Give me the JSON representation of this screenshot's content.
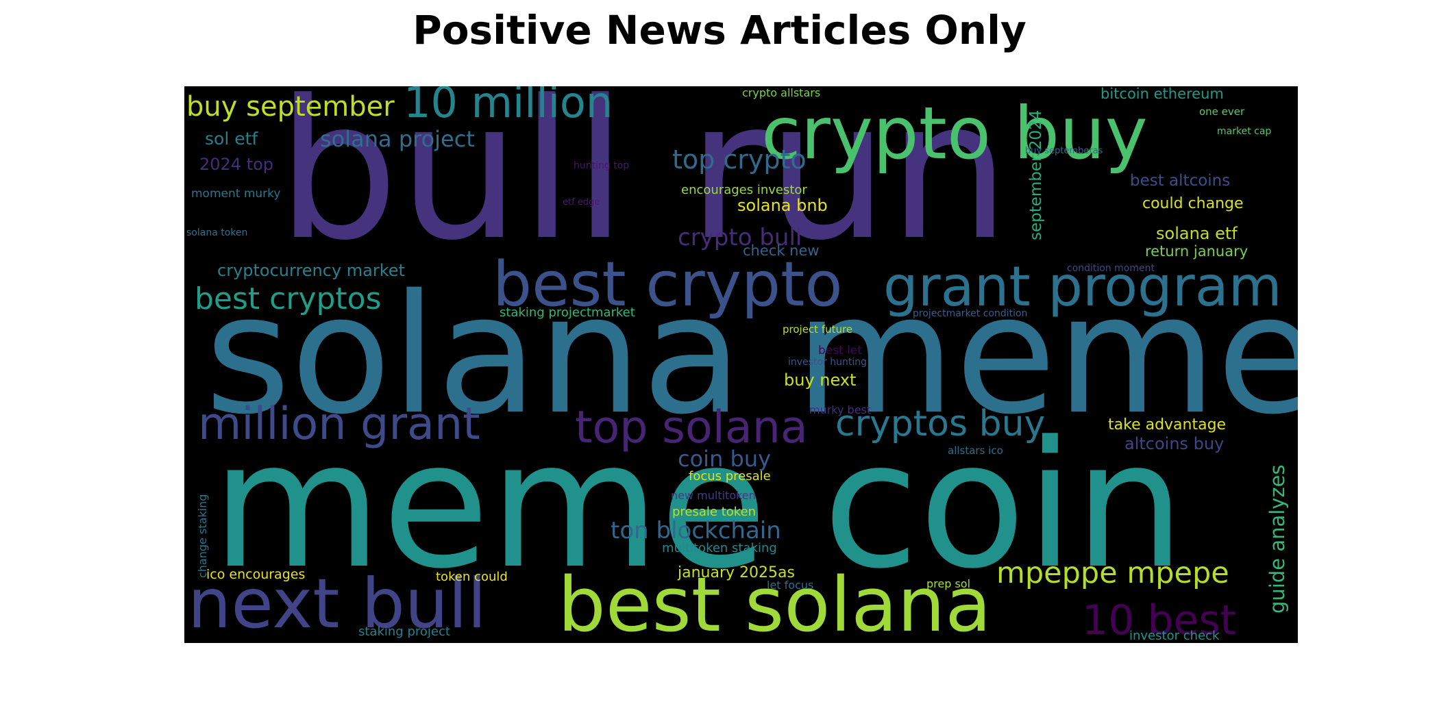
{
  "title": "Positive News Articles Only",
  "chart_data": {
    "type": "wordcloud",
    "title": "Positive News Articles Only",
    "words": [
      {
        "text": "bull run",
        "color": "#46337e"
      },
      {
        "text": "solana meme",
        "color": "#2d708e"
      },
      {
        "text": "meme coin",
        "color": "#21918c"
      },
      {
        "text": "crypto buy",
        "color": "#4ac16d"
      },
      {
        "text": "best crypto",
        "color": "#3b528b"
      },
      {
        "text": "grant program",
        "color": "#2c728e"
      },
      {
        "text": "best solana",
        "color": "#a0da39"
      },
      {
        "text": "next bull",
        "color": "#414487"
      },
      {
        "text": "million grant",
        "color": "#3e4a89"
      },
      {
        "text": "top solana",
        "color": "#482475"
      },
      {
        "text": "cryptos buy",
        "color": "#2a788e"
      },
      {
        "text": "10 million",
        "color": "#25858e"
      },
      {
        "text": "10 best",
        "color": "#440154"
      },
      {
        "text": "mpeppe mpepe",
        "color": "#b5de2b"
      },
      {
        "text": "buy september",
        "color": "#bddf26"
      },
      {
        "text": "best cryptos",
        "color": "#1f9e89"
      },
      {
        "text": "ton blockchain",
        "color": "#31688e"
      },
      {
        "text": "top crypto",
        "color": "#306a8e"
      },
      {
        "text": "solana project",
        "color": "#2e6f8e"
      },
      {
        "text": "guide analyzes",
        "color": "#35b779"
      },
      {
        "text": "coin buy",
        "color": "#38598c"
      },
      {
        "text": "crypto bull",
        "color": "#472c7a"
      },
      {
        "text": "sol etf",
        "color": "#277f8e"
      },
      {
        "text": "september 2024",
        "color": "#29af7f"
      },
      {
        "text": "2024 top",
        "color": "#472d7b"
      },
      {
        "text": "take advantage",
        "color": "#dde318"
      },
      {
        "text": "best altcoins",
        "color": "#3d4d8a"
      },
      {
        "text": "could change",
        "color": "#d8e219"
      },
      {
        "text": "solana etf",
        "color": "#c2df23"
      },
      {
        "text": "return january",
        "color": "#7ad151"
      },
      {
        "text": "altcoins buy",
        "color": "#404588"
      },
      {
        "text": "cryptocurrency market",
        "color": "#26828e"
      },
      {
        "text": "bitcoin ethereum",
        "color": "#1f998a"
      },
      {
        "text": "buy next",
        "color": "#cae11f"
      },
      {
        "text": "solana bnb",
        "color": "#e5e419"
      },
      {
        "text": "check new",
        "color": "#33638d"
      },
      {
        "text": "january 2025as",
        "color": "#c8e020"
      },
      {
        "text": "encourages investor",
        "color": "#9bd93c"
      },
      {
        "text": "coin buy ",
        "color": "#38598c"
      },
      {
        "text": "focus presale",
        "color": "#dfe318"
      },
      {
        "text": "presale token",
        "color": "#c0df25"
      },
      {
        "text": "multitoken staking",
        "color": "#23898e"
      },
      {
        "text": "new multitoken",
        "color": "#443a83"
      },
      {
        "text": "ico encourages",
        "color": "#e7e419"
      },
      {
        "text": "token could",
        "color": "#eae51a"
      },
      {
        "text": "staking project",
        "color": "#26818e"
      },
      {
        "text": "investor check",
        "color": "#1f968b"
      },
      {
        "text": "staking projectmarket",
        "color": "#34b679"
      },
      {
        "text": "moment murky",
        "color": "#2a768e"
      },
      {
        "text": "crypto allstars",
        "color": "#7cd250"
      },
      {
        "text": "one ever",
        "color": "#5ec962"
      },
      {
        "text": "market cap",
        "color": "#54c568"
      },
      {
        "text": "buy septemberas",
        "color": "#31668e"
      },
      {
        "text": "hunting top",
        "color": "#481769"
      },
      {
        "text": "etf edge",
        "color": "#481a6c"
      },
      {
        "text": "solana token",
        "color": "#2c718e"
      },
      {
        "text": "project future",
        "color": "#b8de29"
      },
      {
        "text": "projectmarket condition",
        "color": "#365d8d"
      },
      {
        "text": "condition moment",
        "color": "#3f4788"
      },
      {
        "text": "best let",
        "color": "#46075a"
      },
      {
        "text": "investor hunting",
        "color": "#3b528b"
      },
      {
        "text": "murky best",
        "color": "#472f7d"
      },
      {
        "text": "allstars ico",
        "color": "#2d708e"
      },
      {
        "text": "change staking",
        "color": "#2a788e"
      },
      {
        "text": "let focus",
        "color": "#2e6e8e"
      },
      {
        "text": "prep sol",
        "color": "#a8db34"
      }
    ]
  }
}
